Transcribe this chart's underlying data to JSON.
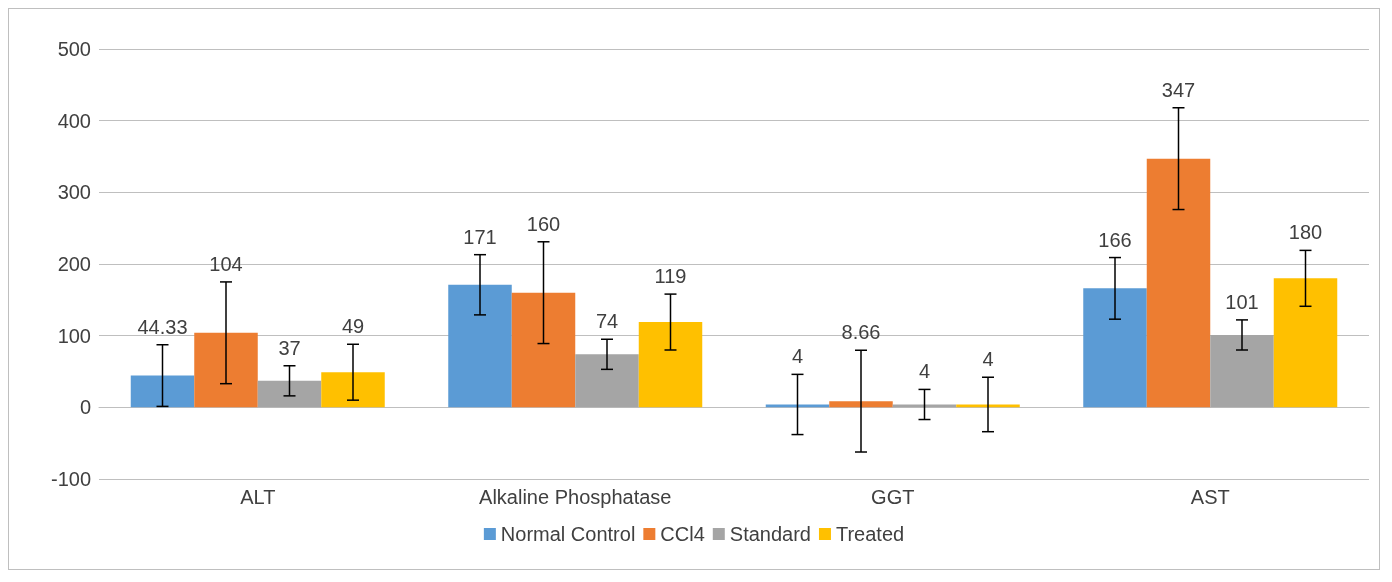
{
  "chart_data": {
    "type": "bar",
    "categories": [
      "ALT",
      "Alkaline Phosphatase",
      "GGT",
      "AST"
    ],
    "series": [
      {
        "name": "Normal Control",
        "color": "#5b9bd5",
        "values": [
          44.33,
          171,
          4,
          166
        ],
        "errors": [
          43,
          42,
          42,
          43
        ]
      },
      {
        "name": "CCl4",
        "color": "#ed7d31",
        "values": [
          104,
          160,
          8.66,
          347
        ],
        "errors": [
          71,
          71,
          71,
          71
        ]
      },
      {
        "name": "Standard",
        "color": "#a5a5a5",
        "values": [
          37,
          74,
          4,
          101
        ],
        "errors": [
          21,
          21,
          21,
          21
        ]
      },
      {
        "name": "Treated",
        "color": "#ffc000",
        "values": [
          49,
          119,
          4,
          180
        ],
        "errors": [
          39,
          39,
          38,
          39
        ]
      }
    ],
    "ylim": [
      -100,
      500
    ],
    "yticks": [
      -100,
      0,
      100,
      200,
      300,
      400,
      500
    ],
    "grid": "y",
    "legend": "bottom",
    "data_labels": true
  }
}
